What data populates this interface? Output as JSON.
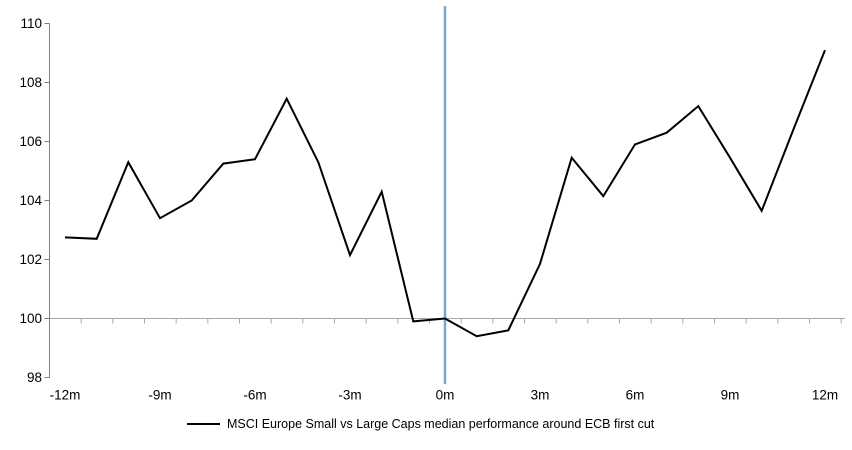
{
  "chart_data": {
    "type": "line",
    "title": "",
    "xlabel": "",
    "ylabel": "",
    "x": [
      -12,
      -11,
      -10,
      -9,
      -8,
      -7,
      -6,
      -5,
      -4,
      -3,
      -2,
      -1,
      0,
      1,
      2,
      3,
      4,
      5,
      6,
      7,
      8,
      9,
      10,
      11,
      12
    ],
    "series": [
      {
        "name": "MSCI Europe Small vs Large Caps median performance around ECB first cut",
        "values": [
          102.75,
          102.7,
          105.3,
          103.4,
          104.0,
          105.25,
          105.4,
          107.45,
          105.3,
          102.15,
          104.3,
          99.9,
          100.0,
          99.4,
          99.6,
          101.85,
          105.45,
          104.15,
          105.9,
          106.3,
          107.2,
          105.45,
          103.65,
          106.4,
          109.1
        ]
      }
    ],
    "x_tick_labels": [
      {
        "month": -12,
        "label": "-12m"
      },
      {
        "month": -9,
        "label": "-9m"
      },
      {
        "month": -6,
        "label": "-6m"
      },
      {
        "month": -3,
        "label": "-3m"
      },
      {
        "month": 0,
        "label": "0m"
      },
      {
        "month": 3,
        "label": "3m"
      },
      {
        "month": 6,
        "label": "6m"
      },
      {
        "month": 9,
        "label": "9m"
      },
      {
        "month": 12,
        "label": "12m"
      }
    ],
    "y_ticks": [
      98,
      100,
      102,
      104,
      106,
      108,
      110
    ],
    "ylim": [
      98,
      110
    ],
    "xlim_months": [
      -12.5,
      12.5
    ],
    "baseline_value": 100,
    "event_line_x": 0,
    "grid": "single horizontal baseline at 100, no other gridlines",
    "legend_position": "bottom-center",
    "colors": {
      "series": "#000000",
      "event_line": "#7EA6CE",
      "axis": "#7F7F7F",
      "baseline": "#A8A8A8",
      "text": "#000000",
      "background": "#FFFFFF"
    }
  }
}
